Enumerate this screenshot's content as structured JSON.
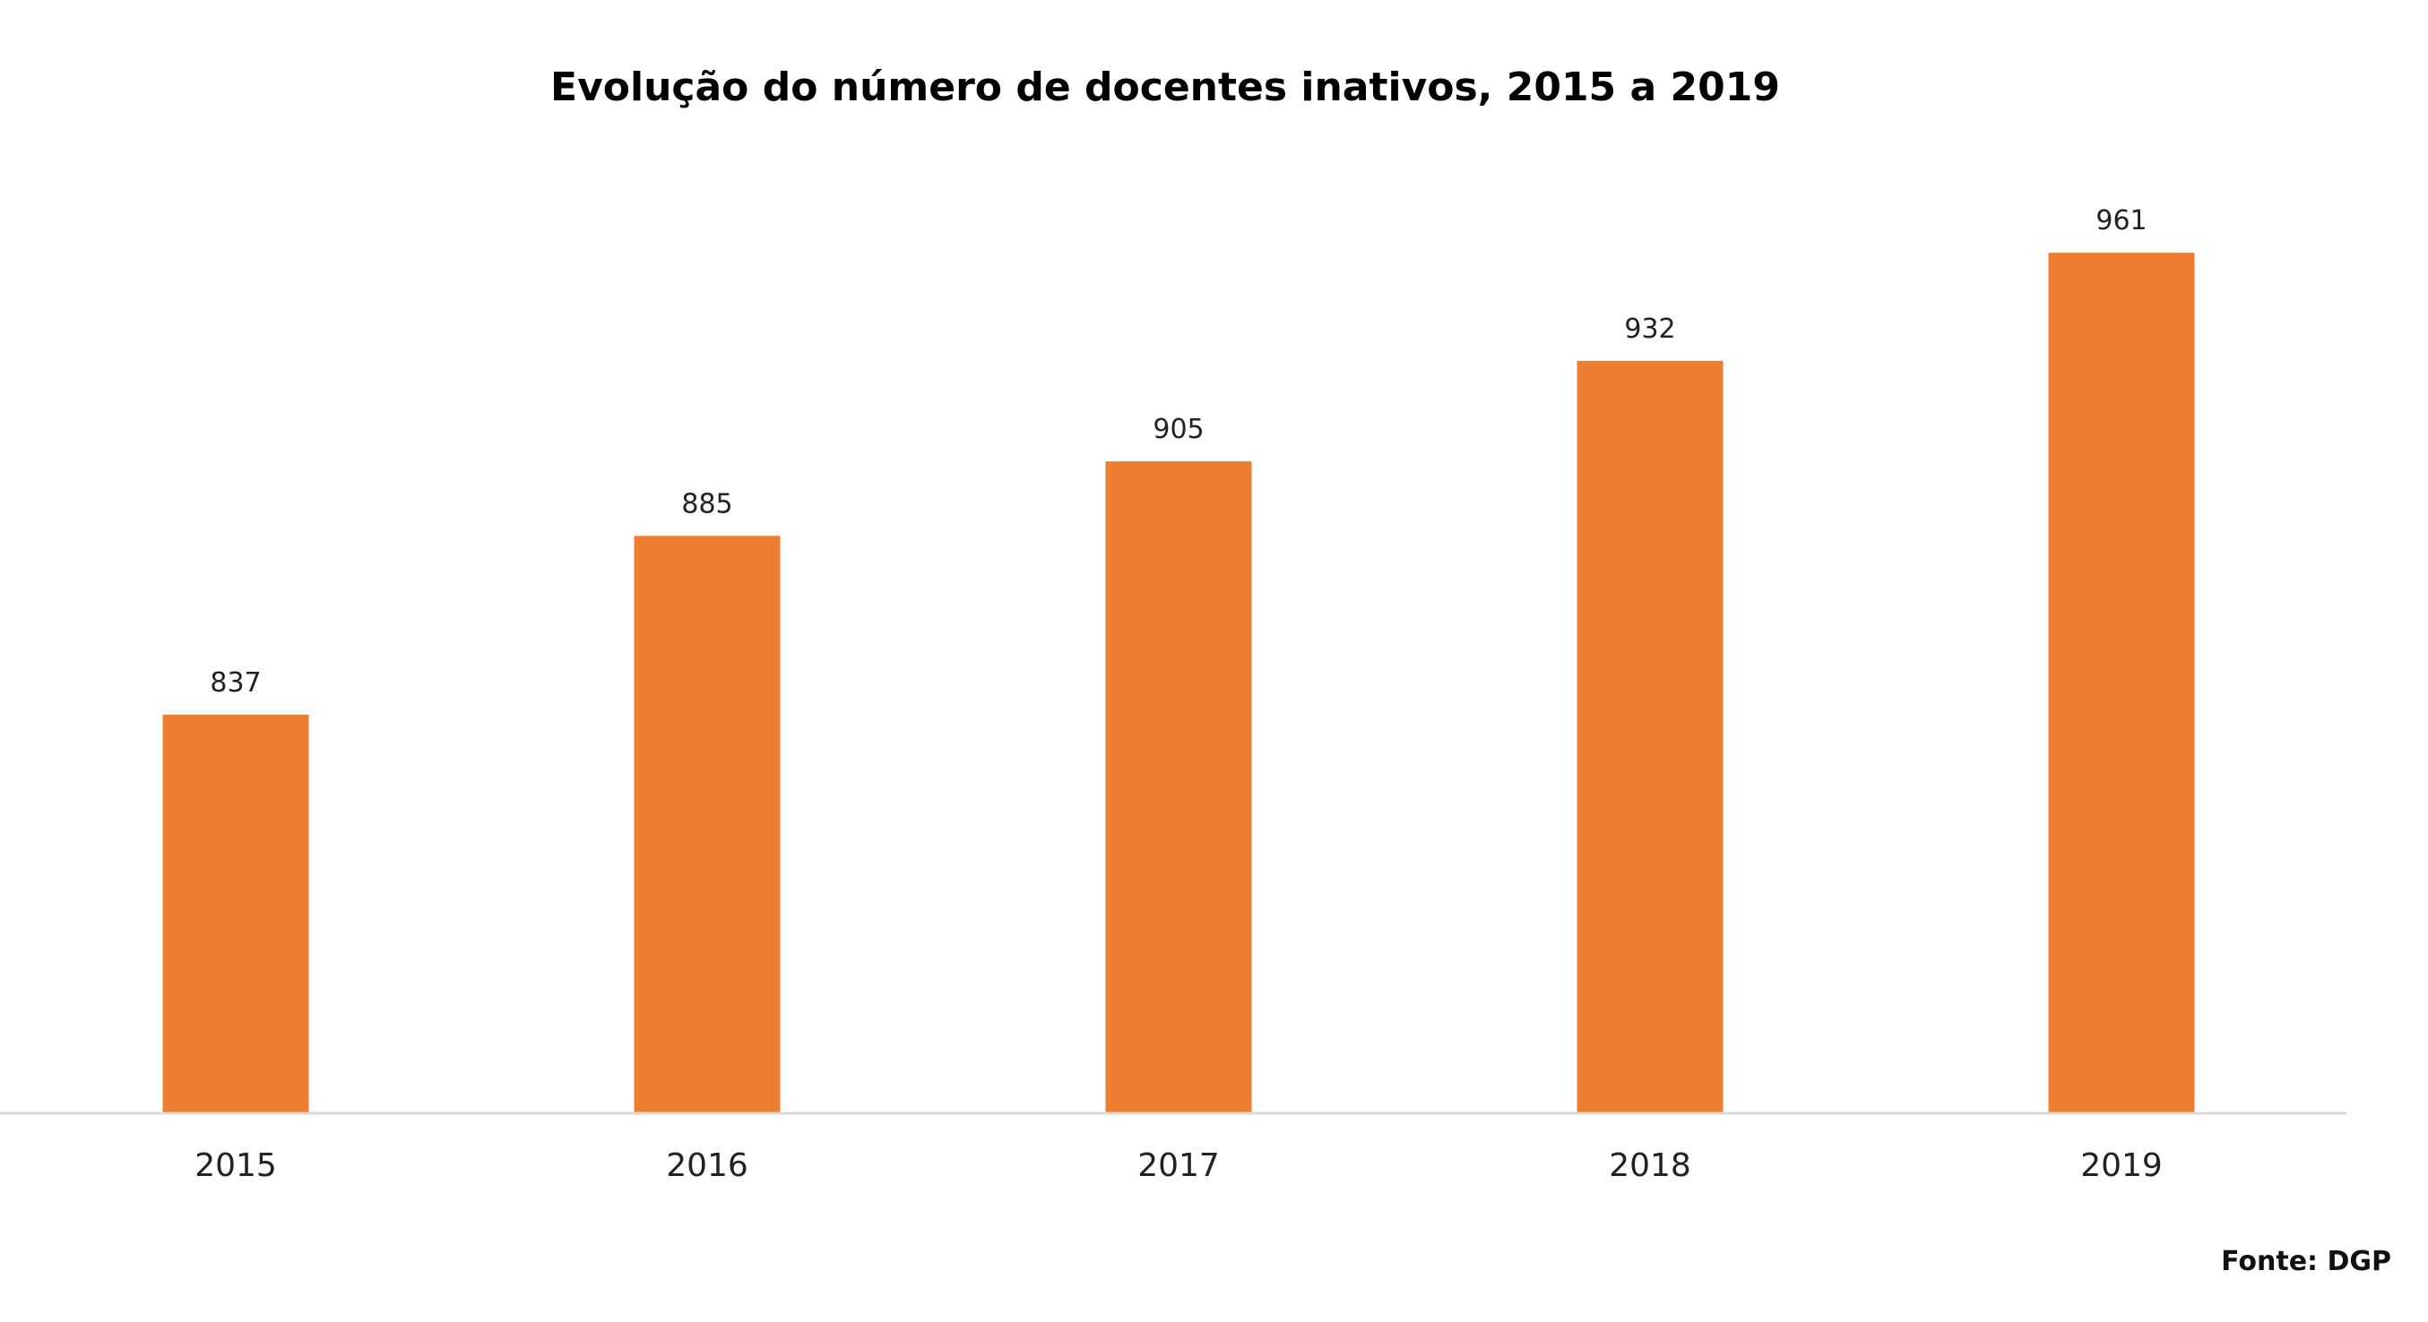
{
  "chart_data": {
    "type": "bar",
    "title": "Evolução do número de docentes inativos, 2015 a 2019",
    "categories": [
      "2015",
      "2016",
      "2017",
      "2018",
      "2019"
    ],
    "values": [
      837,
      885,
      905,
      932,
      961
    ],
    "xlabel": "",
    "ylabel": "",
    "ylim": [
      730,
      1000
    ],
    "grid": false,
    "legend": "none",
    "bar_color": "#ED7D31",
    "axis_color": "#D9D9D9",
    "source": "Fonte: DGP"
  }
}
